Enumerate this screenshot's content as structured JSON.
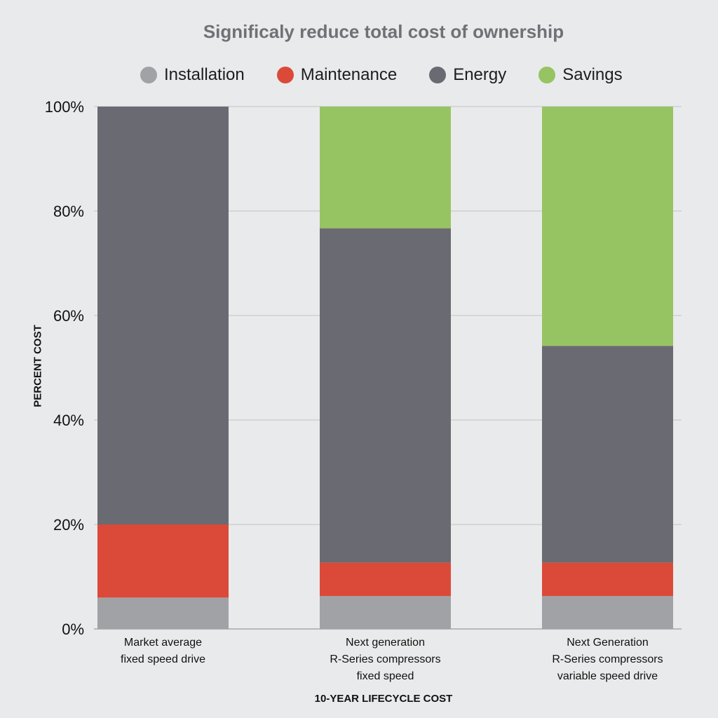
{
  "chart_data": {
    "type": "bar",
    "stacked": true,
    "title": "Significaly reduce total cost of ownership",
    "xlabel": "10-YEAR LIFECYCLE COST",
    "ylabel": "PERCENT COST",
    "ylim": [
      0,
      100
    ],
    "yticks": [
      "0%",
      "20%",
      "40%",
      "60%",
      "80%",
      "100%"
    ],
    "ytick_values": [
      0,
      20,
      40,
      60,
      80,
      100
    ],
    "grid": true,
    "legend_position": "top",
    "categories": [
      [
        "Market average",
        "fixed speed drive"
      ],
      [
        "Next generation",
        "R-Series compressors",
        "fixed speed"
      ],
      [
        "Next Generation",
        "R-Series compressors",
        "variable speed drive"
      ]
    ],
    "series": [
      {
        "name": "Installation",
        "color": "#a1a2a6",
        "values": [
          6,
          6.3,
          6.3
        ]
      },
      {
        "name": "Maintenance",
        "color": "#db4a39",
        "values": [
          14,
          6.4,
          6.4
        ]
      },
      {
        "name": "Energy",
        "color": "#6a6a72",
        "values": [
          80,
          64,
          41.5
        ]
      },
      {
        "name": "Savings",
        "color": "#97c462",
        "values": [
          0,
          23.3,
          45.8
        ]
      }
    ]
  }
}
